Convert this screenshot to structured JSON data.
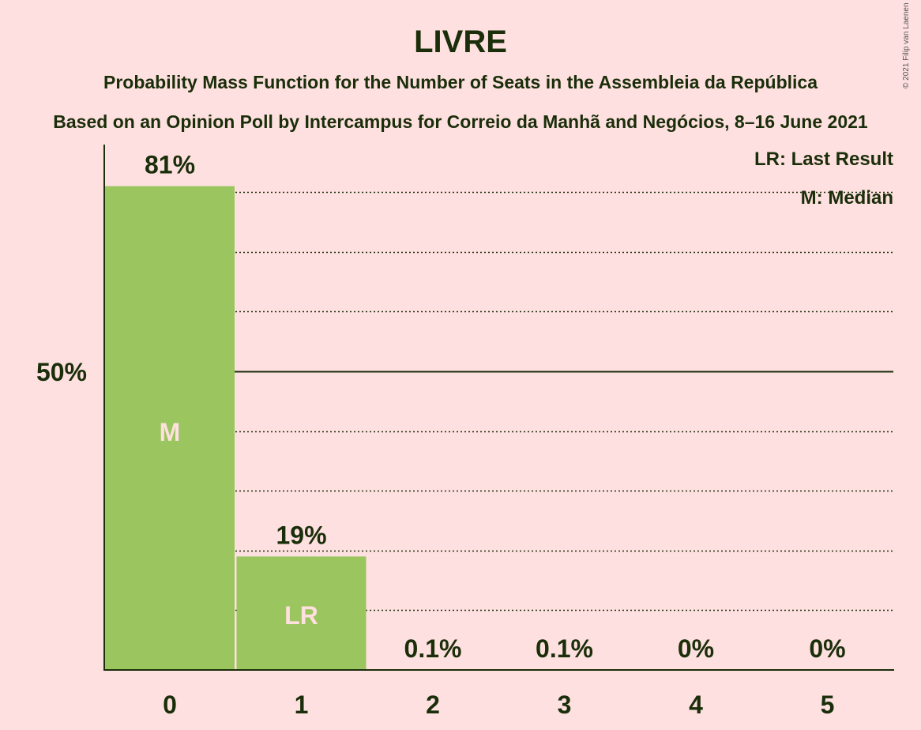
{
  "chart_data": {
    "type": "bar",
    "title": "LIVRE",
    "subtitle": "Probability Mass Function for the Number of Seats in the Assembleia da República",
    "source": "Based on an Opinion Poll by Intercampus for Correio da Manhã and Negócios, 8–16 June 2021",
    "copyright": "© 2021 Filip van Laenen",
    "categories": [
      "0",
      "1",
      "2",
      "3",
      "4",
      "5"
    ],
    "values": [
      81,
      19,
      0.1,
      0.1,
      0,
      0
    ],
    "value_labels": [
      "81%",
      "19%",
      "0.1%",
      "0.1%",
      "0%",
      "0%"
    ],
    "bar_markers": [
      "M",
      "LR",
      "",
      "",
      "",
      ""
    ],
    "ylim": [
      0,
      88
    ],
    "y_tick_label": "50%",
    "y_tick_value": 50,
    "gridlines": [
      10,
      20,
      30,
      40,
      60,
      70,
      80
    ],
    "legend": [
      "LR: Last Result",
      "M: Median"
    ],
    "legend_position": "top-right",
    "colors": {
      "bar": "#9bc55f",
      "background": "#ffe0e0",
      "text": "#1a2e0a"
    }
  }
}
